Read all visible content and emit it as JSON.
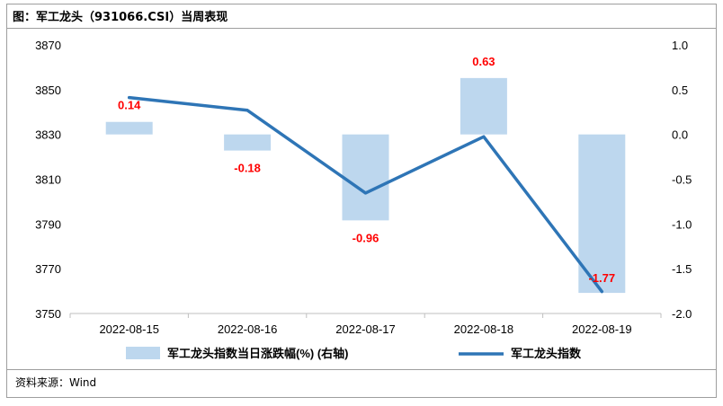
{
  "header": {
    "title": "图：军工龙头（931066.CSI）当周表现"
  },
  "footer": {
    "source": "资料来源：Wind"
  },
  "colors": {
    "bar": "#bdd7ee",
    "line": "#2e75b6",
    "label": "#ff0000",
    "axis_text": "#000000"
  },
  "chart_data": {
    "type": "bar+line",
    "categories": [
      "2022-08-15",
      "2022-08-16",
      "2022-08-17",
      "2022-08-18",
      "2022-08-19"
    ],
    "series": [
      {
        "name": "军工龙头指数当日涨跌幅(%) (右轴)",
        "type": "bar",
        "axis": "right",
        "values": [
          0.14,
          -0.18,
          -0.96,
          0.63,
          -1.77
        ],
        "labels": [
          "0.14",
          "-0.18",
          "-0.96",
          "0.63",
          "-1.77"
        ]
      },
      {
        "name": "军工龙头指数",
        "type": "line",
        "axis": "left",
        "values": [
          3846.5,
          3840.8,
          3803.8,
          3829.0,
          3759.8
        ]
      }
    ],
    "left_axis": {
      "ylim": [
        3750,
        3870
      ],
      "ticks": [
        "3870",
        "3850",
        "3830",
        "3810",
        "3790",
        "3770",
        "3750"
      ]
    },
    "right_axis": {
      "ylim": [
        -2.0,
        1.0
      ],
      "ticks": [
        "1.0",
        "0.5",
        "0.0",
        "-0.5",
        "-1.0",
        "-1.5",
        "-2.0"
      ]
    },
    "grid": false,
    "legend": "bottom"
  }
}
